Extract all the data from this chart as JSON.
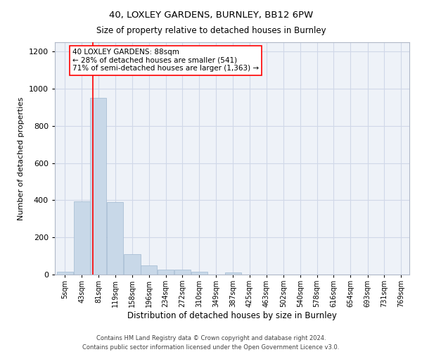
{
  "title1": "40, LOXLEY GARDENS, BURNLEY, BB12 6PW",
  "title2": "Size of property relative to detached houses in Burnley",
  "xlabel": "Distribution of detached houses by size in Burnley",
  "ylabel": "Number of detached properties",
  "footnote": "Contains HM Land Registry data © Crown copyright and database right 2024.\nContains public sector information licensed under the Open Government Licence v3.0.",
  "bin_labels": [
    "5sqm",
    "43sqm",
    "81sqm",
    "119sqm",
    "158sqm",
    "196sqm",
    "234sqm",
    "272sqm",
    "310sqm",
    "349sqm",
    "387sqm",
    "425sqm",
    "463sqm",
    "502sqm",
    "540sqm",
    "578sqm",
    "616sqm",
    "654sqm",
    "693sqm",
    "731sqm",
    "769sqm"
  ],
  "bar_values": [
    15,
    395,
    950,
    390,
    110,
    50,
    25,
    25,
    15,
    0,
    10,
    0,
    0,
    0,
    0,
    0,
    0,
    0,
    0,
    0
  ],
  "bar_color": "#c8d8e8",
  "bar_edge_color": "#a0b8d0",
  "grid_color": "#d0d8e8",
  "background_color": "#eef2f8",
  "vline_color": "red",
  "annotation_text": "40 LOXLEY GARDENS: 88sqm\n← 28% of detached houses are smaller (541)\n71% of semi-detached houses are larger (1,363) →",
  "annotation_box_color": "white",
  "annotation_box_edge": "red",
  "ylim": [
    0,
    1250
  ],
  "yticks": [
    0,
    200,
    400,
    600,
    800,
    1000,
    1200
  ],
  "property_sqm": 88,
  "bin_edges": [
    5,
    43,
    81,
    119,
    158,
    196,
    234,
    272,
    310,
    349,
    387,
    425,
    463,
    502,
    540,
    578,
    616,
    654,
    693,
    731,
    769
  ]
}
